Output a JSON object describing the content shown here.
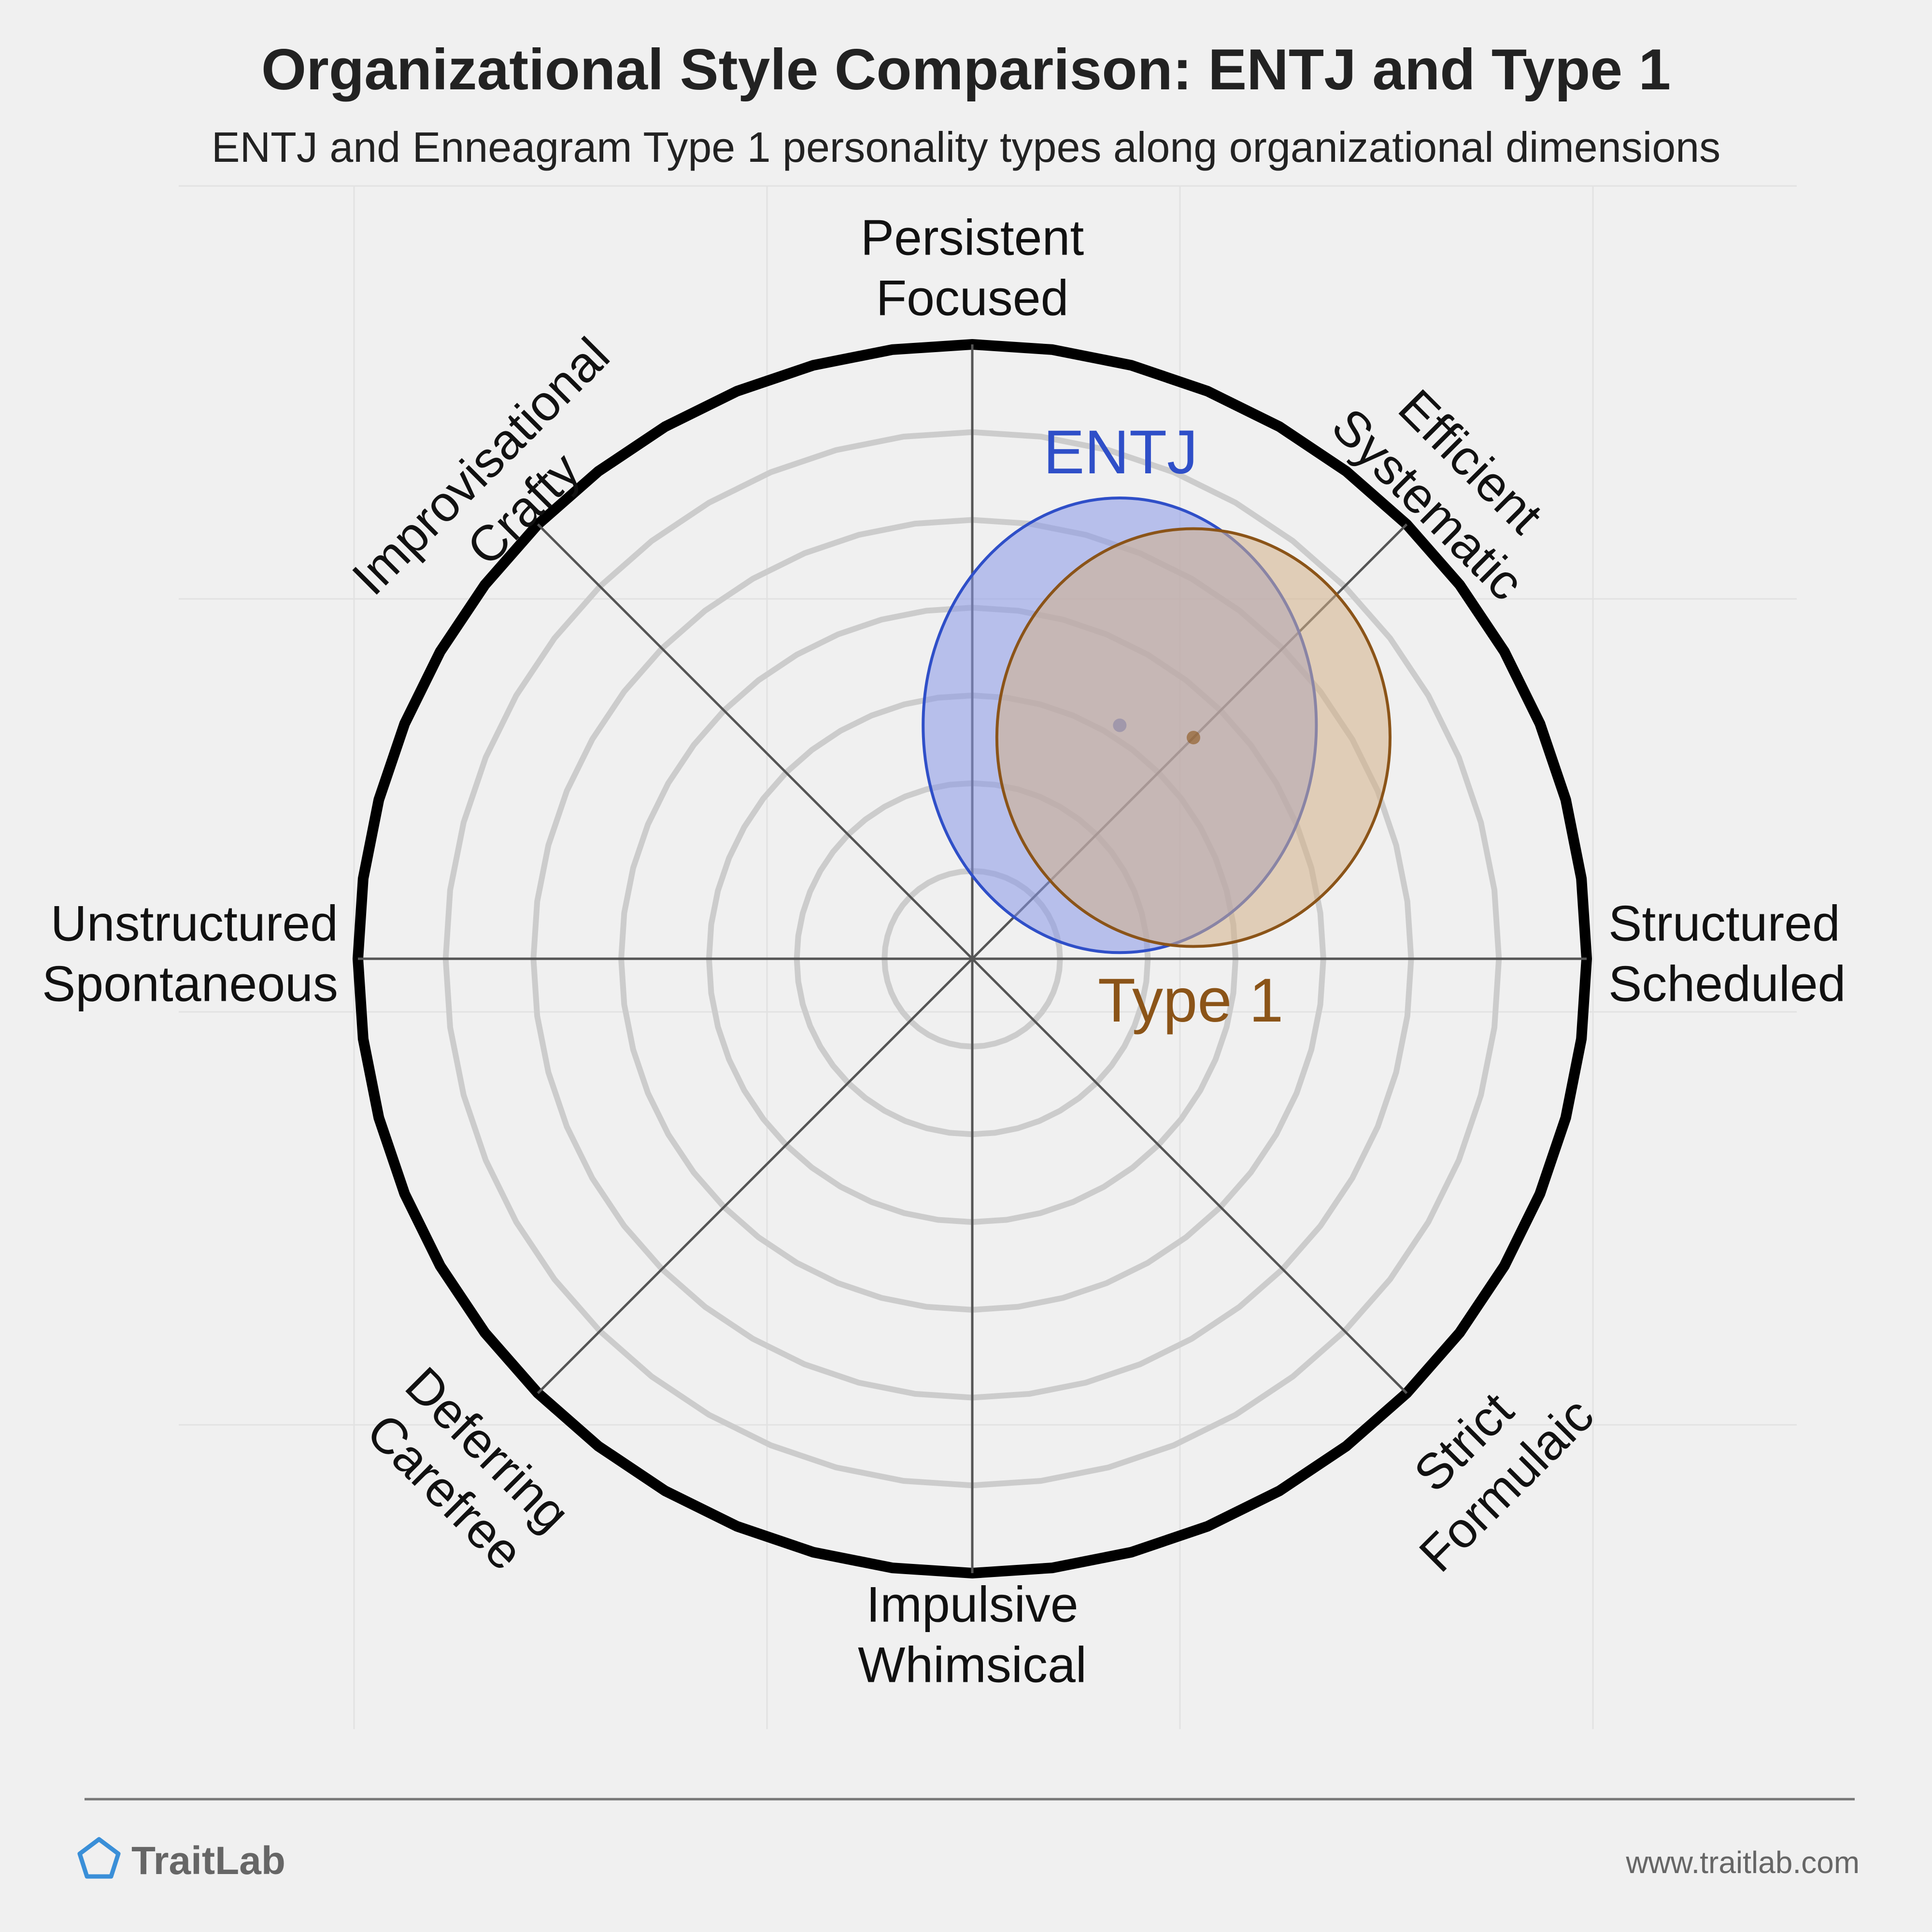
{
  "chart_data": {
    "type": "radar-ellipse",
    "title": "Organizational Style Comparison: ENTJ and Type 1",
    "subtitle": "ENTJ and Enneagram Type 1 personality types along organizational dimensions",
    "axes": [
      {
        "id": "n",
        "lines": [
          "Persistent",
          "Focused"
        ]
      },
      {
        "id": "ne",
        "lines": [
          "Efficient",
          "Systematic"
        ]
      },
      {
        "id": "e",
        "lines": [
          "Structured",
          "Scheduled"
        ]
      },
      {
        "id": "se",
        "lines": [
          "Strict",
          "Formulaic"
        ]
      },
      {
        "id": "s",
        "lines": [
          "Impulsive",
          "Whimsical"
        ]
      },
      {
        "id": "sw",
        "lines": [
          "Deferring",
          "Carefree"
        ]
      },
      {
        "id": "w",
        "lines": [
          "Unstructured",
          "Spontaneous"
        ]
      },
      {
        "id": "nw",
        "lines": [
          "Improvisational",
          "Crafty"
        ]
      }
    ],
    "rings": 6,
    "series": [
      {
        "name": "ENTJ",
        "color": "#2f4fc8",
        "fill": "#8898e8",
        "center": [
          0.24,
          0.38
        ],
        "radii": [
          0.32,
          0.37
        ]
      },
      {
        "name": "Type 1",
        "color": "#8b5418",
        "fill": "#d4b088",
        "center": [
          0.36,
          0.36
        ],
        "radii": [
          0.32,
          0.34
        ]
      }
    ]
  },
  "footer": {
    "brand": "TraitLab",
    "url": "www.traitlab.com",
    "brand_color": "#3a8fd8"
  }
}
